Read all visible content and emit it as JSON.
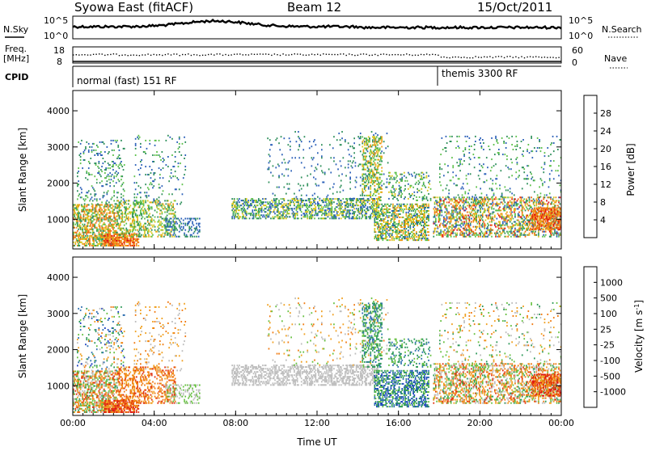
{
  "header": {
    "title": "Syowa East (fitACF)",
    "beam": "Beam 12",
    "date": "15/Oct/2011"
  },
  "strips": {
    "nsky": {
      "label": "N.Sky",
      "tick_top": "10^5",
      "tick_bottom": "10^0"
    },
    "nsearch": {
      "label": "N.Search",
      "tick_top": "10^5",
      "tick_bottom": "10^0"
    },
    "freq": {
      "label_line1": "Freq.",
      "label_line2": "[MHz]",
      "tick_top": "18",
      "tick_bottom": "8"
    },
    "nave": {
      "label": "Nave",
      "tick_top": "60",
      "tick_bottom": "0"
    },
    "cpid": {
      "label": "CPID",
      "mode1": "normal (fast) 151 RF",
      "mode2": "themis 3300 RF"
    }
  },
  "chart_data": [
    {
      "type": "heatmap",
      "panel": "power",
      "ylabel": "Slant Range [km]",
      "xlabel": "",
      "x_ticks": [
        "00:00",
        "04:00",
        "08:00",
        "12:00",
        "16:00",
        "20:00",
        "00:00"
      ],
      "x_range_hours": [
        0,
        24
      ],
      "y_ticks": [
        1000,
        2000,
        3000,
        4000
      ],
      "ylim": [
        180,
        4560
      ],
      "colorbar": {
        "label": "Power [dB]",
        "ticks": [
          4,
          8,
          12,
          16,
          20,
          24,
          28
        ],
        "range": [
          0,
          32
        ],
        "colors": [
          "#1010ff",
          "#2a5fb8",
          "#2d8f5a",
          "#5cc04a",
          "#d8c61a",
          "#ee9a16",
          "#f26a10",
          "#e01010"
        ]
      }
    },
    {
      "type": "heatmap",
      "panel": "velocity",
      "ylabel": "Slant Range [km]",
      "xlabel": "Time UT",
      "x_ticks": [
        "00:00",
        "04:00",
        "08:00",
        "12:00",
        "16:00",
        "20:00",
        "00:00"
      ],
      "x_range_hours": [
        0,
        24
      ],
      "y_ticks": [
        1000,
        2000,
        3000,
        4000
      ],
      "ylim": [
        180,
        4560
      ],
      "colorbar": {
        "label": "Velocity [m s",
        "label_sup": "-1",
        "label_end": "]",
        "ticks": [
          "1000",
          "500",
          "100",
          "25",
          "-25",
          "-100",
          "-500",
          "-1000"
        ],
        "colors": [
          "#1a3fc0",
          "#2e6fb0",
          "#2f9a5a",
          "#66c040",
          "#bdbdbd",
          "#f0a020",
          "#f07a10",
          "#e03010",
          "#e01010"
        ]
      }
    }
  ]
}
